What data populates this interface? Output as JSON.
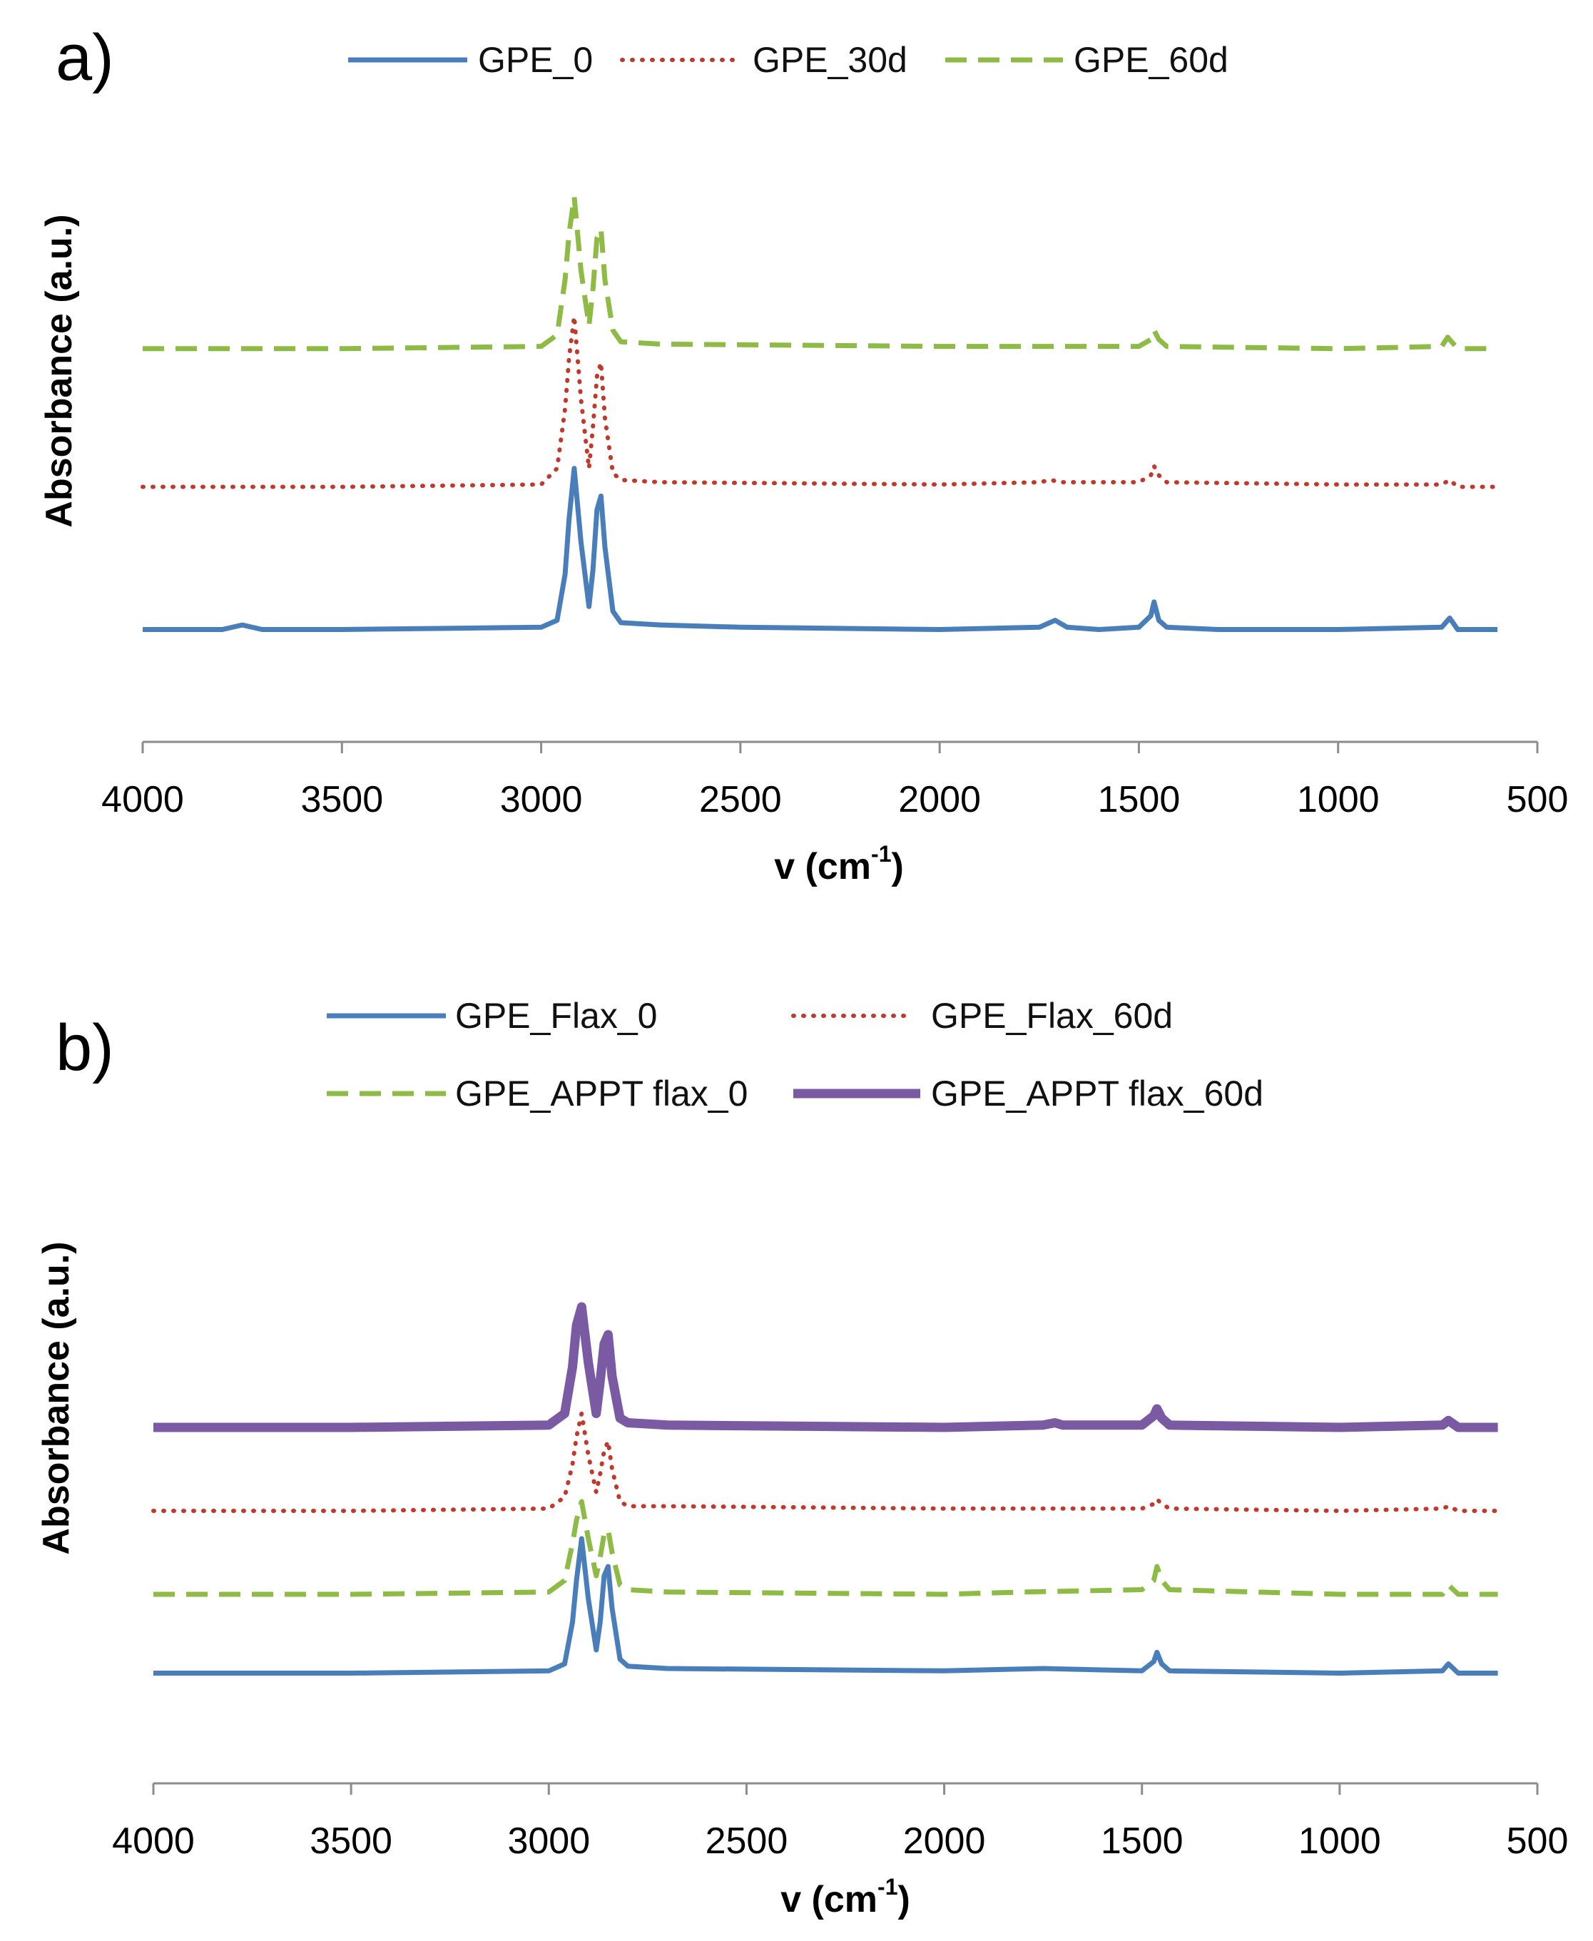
{
  "colors": {
    "blue": "#4a7ebb",
    "red": "#c0392b",
    "green": "#8dbb45",
    "purple": "#7a5aa3",
    "axis": "#8c8c8c"
  },
  "chart_data": [
    {
      "panel_label": "a)",
      "type": "line",
      "title": "",
      "xlabel": "v (cm",
      "xlabel_sup": "-1",
      "xlabel_close": ")",
      "ylabel": "Absorbance (a.u.)",
      "xlim": [
        4000,
        500
      ],
      "ylim": [
        0,
        1
      ],
      "xticks": [
        "4000",
        "3500",
        "3000",
        "2500",
        "2000",
        "1500",
        "1000",
        "500"
      ],
      "xtick_values": [
        4000,
        3500,
        3000,
        2500,
        2000,
        1500,
        1000,
        500
      ],
      "series": [
        {
          "name": "GPE_0",
          "color": "blue",
          "style": "solid",
          "width": "normal",
          "baseline": 0.12,
          "x": [
            4000,
            3800,
            3750,
            3700,
            3500,
            3000,
            2960,
            2940,
            2930,
            2917,
            2900,
            2880,
            2870,
            2860,
            2850,
            2840,
            2820,
            2800,
            2700,
            2500,
            2000,
            1750,
            1710,
            1680,
            1600,
            1500,
            1470,
            1462,
            1450,
            1430,
            1300,
            1000,
            740,
            720,
            700,
            600
          ],
          "y": [
            0.12,
            0.12,
            0.13,
            0.12,
            0.12,
            0.125,
            0.14,
            0.24,
            0.36,
            0.47,
            0.31,
            0.17,
            0.25,
            0.38,
            0.41,
            0.3,
            0.16,
            0.135,
            0.13,
            0.125,
            0.12,
            0.125,
            0.14,
            0.125,
            0.12,
            0.125,
            0.15,
            0.18,
            0.14,
            0.125,
            0.12,
            0.12,
            0.125,
            0.145,
            0.12,
            0.12
          ]
        },
        {
          "name": "GPE_30d",
          "color": "red",
          "style": "dotted",
          "width": "normal",
          "baseline": 0.43,
          "x": [
            4000,
            3500,
            3000,
            2960,
            2940,
            2930,
            2917,
            2900,
            2880,
            2870,
            2860,
            2850,
            2840,
            2820,
            2800,
            2700,
            2000,
            1750,
            1720,
            1700,
            1500,
            1470,
            1462,
            1450,
            1430,
            1000,
            740,
            720,
            700,
            600
          ],
          "y": [
            0.43,
            0.43,
            0.435,
            0.47,
            0.6,
            0.71,
            0.8,
            0.62,
            0.47,
            0.56,
            0.67,
            0.7,
            0.58,
            0.46,
            0.445,
            0.44,
            0.435,
            0.44,
            0.445,
            0.44,
            0.44,
            0.455,
            0.475,
            0.455,
            0.44,
            0.435,
            0.435,
            0.445,
            0.43,
            0.43
          ]
        },
        {
          "name": "GPE_60d",
          "color": "green",
          "style": "dashed",
          "width": "normal",
          "baseline": 0.73,
          "x": [
            4000,
            3500,
            3000,
            2960,
            2940,
            2930,
            2917,
            2900,
            2880,
            2870,
            2860,
            2850,
            2840,
            2820,
            2800,
            2700,
            2000,
            1500,
            1470,
            1462,
            1450,
            1430,
            1000,
            740,
            725,
            700,
            600
          ],
          "y": [
            0.73,
            0.73,
            0.735,
            0.76,
            0.88,
            0.98,
            1.06,
            0.9,
            0.78,
            0.86,
            0.97,
            0.99,
            0.88,
            0.77,
            0.745,
            0.74,
            0.735,
            0.735,
            0.75,
            0.77,
            0.75,
            0.735,
            0.73,
            0.735,
            0.755,
            0.73,
            0.73
          ]
        }
      ]
    },
    {
      "panel_label": "b)",
      "type": "line",
      "title": "",
      "xlabel": "v (cm",
      "xlabel_sup": "-1",
      "xlabel_close": ")",
      "ylabel": "Absorbance (a.u.)",
      "xlim": [
        4000,
        500
      ],
      "ylim": [
        0,
        1
      ],
      "xticks": [
        "4000",
        "3500",
        "3000",
        "2500",
        "2000",
        "1500",
        "1000",
        "500"
      ],
      "xtick_values": [
        4000,
        3500,
        3000,
        2500,
        2000,
        1500,
        1000,
        500
      ],
      "series": [
        {
          "name": "GPE_Flax_0",
          "color": "blue",
          "style": "solid",
          "width": "normal",
          "x": [
            4000,
            3500,
            3000,
            2960,
            2940,
            2930,
            2917,
            2900,
            2880,
            2870,
            2860,
            2850,
            2840,
            2820,
            2800,
            2700,
            2000,
            1750,
            1500,
            1470,
            1462,
            1450,
            1430,
            1000,
            740,
            725,
            700,
            600
          ],
          "y": [
            0.13,
            0.13,
            0.135,
            0.15,
            0.24,
            0.33,
            0.42,
            0.29,
            0.18,
            0.24,
            0.34,
            0.36,
            0.27,
            0.16,
            0.145,
            0.14,
            0.135,
            0.14,
            0.135,
            0.155,
            0.175,
            0.15,
            0.135,
            0.13,
            0.135,
            0.15,
            0.13,
            0.13
          ]
        },
        {
          "name": "GPE_Flax_60d",
          "color": "red",
          "style": "dotted",
          "width": "normal",
          "x": [
            4000,
            3500,
            3000,
            2960,
            2940,
            2930,
            2917,
            2900,
            2880,
            2870,
            2860,
            2850,
            2840,
            2820,
            2800,
            2700,
            2000,
            1500,
            1470,
            1462,
            1450,
            1430,
            1000,
            740,
            725,
            700,
            600
          ],
          "y": [
            0.48,
            0.48,
            0.485,
            0.51,
            0.58,
            0.64,
            0.69,
            0.6,
            0.52,
            0.56,
            0.61,
            0.63,
            0.57,
            0.5,
            0.49,
            0.49,
            0.485,
            0.485,
            0.495,
            0.505,
            0.495,
            0.485,
            0.48,
            0.485,
            0.49,
            0.48,
            0.48
          ]
        },
        {
          "name": "GPE_APPT flax_0",
          "color": "green",
          "style": "dashed",
          "width": "normal",
          "x": [
            4000,
            3500,
            3000,
            2960,
            2940,
            2930,
            2917,
            2900,
            2880,
            2870,
            2860,
            2850,
            2840,
            2820,
            2800,
            2700,
            2000,
            1800,
            1500,
            1470,
            1462,
            1450,
            1430,
            1000,
            740,
            725,
            700,
            600
          ],
          "y": [
            0.3,
            0.3,
            0.305,
            0.33,
            0.41,
            0.46,
            0.5,
            0.42,
            0.34,
            0.38,
            0.43,
            0.44,
            0.39,
            0.32,
            0.31,
            0.305,
            0.3,
            0.305,
            0.31,
            0.33,
            0.36,
            0.33,
            0.31,
            0.3,
            0.3,
            0.32,
            0.3,
            0.3
          ]
        },
        {
          "name": "GPE_APPT flax_60d",
          "color": "purple",
          "style": "solid",
          "width": "thick",
          "x": [
            4000,
            3500,
            3000,
            2960,
            2940,
            2930,
            2917,
            2900,
            2880,
            2870,
            2860,
            2850,
            2840,
            2820,
            2800,
            2700,
            2000,
            1750,
            1720,
            1700,
            1500,
            1470,
            1462,
            1450,
            1430,
            1000,
            740,
            725,
            700,
            600
          ],
          "y": [
            0.66,
            0.66,
            0.665,
            0.69,
            0.79,
            0.88,
            0.92,
            0.8,
            0.69,
            0.76,
            0.84,
            0.86,
            0.77,
            0.68,
            0.67,
            0.665,
            0.66,
            0.665,
            0.67,
            0.665,
            0.665,
            0.685,
            0.7,
            0.68,
            0.665,
            0.66,
            0.665,
            0.675,
            0.66,
            0.66
          ]
        }
      ]
    }
  ]
}
